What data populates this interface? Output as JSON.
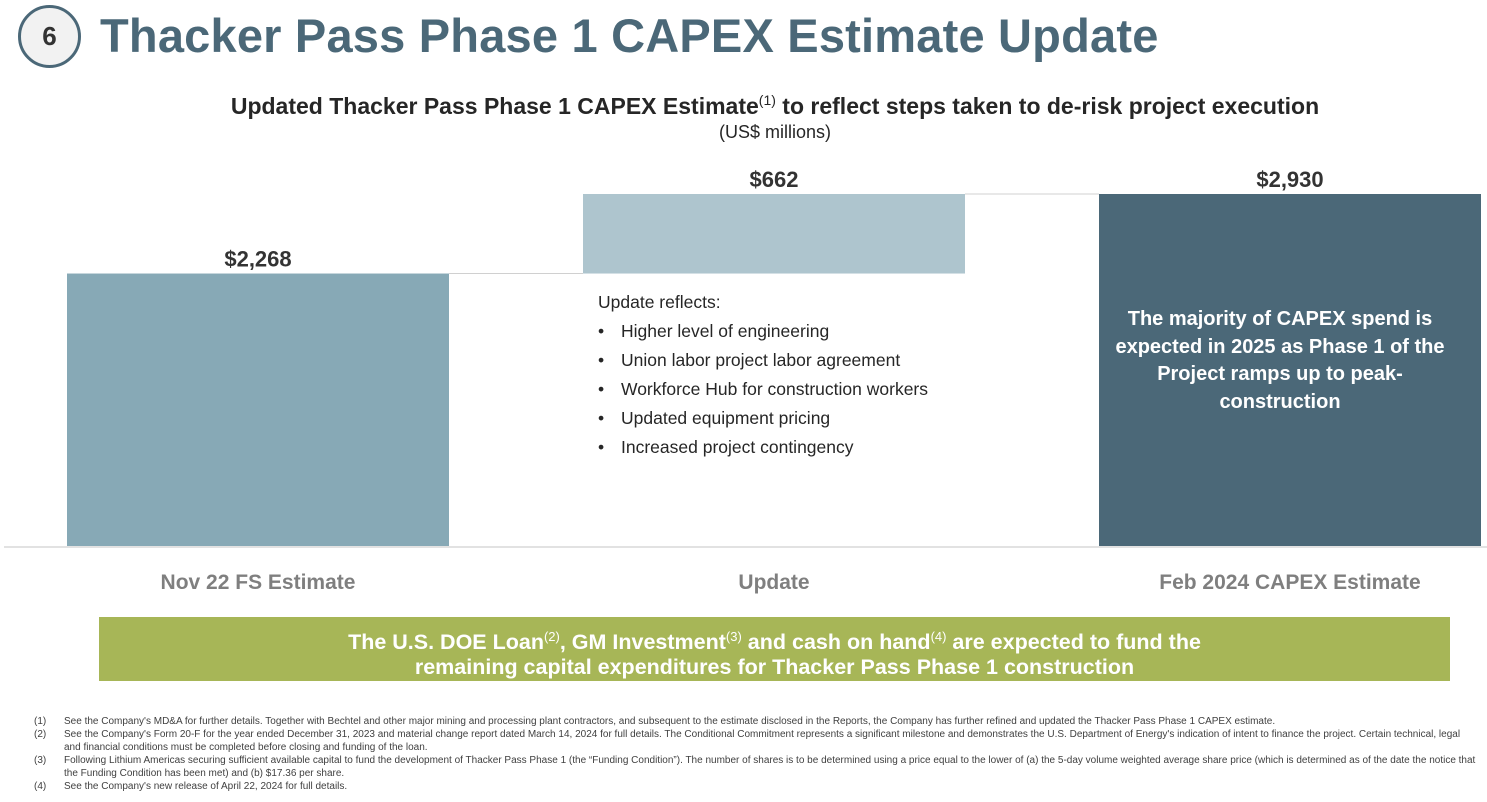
{
  "header": {
    "badge": "6",
    "title": "Thacker Pass Phase 1 CAPEX Estimate Update"
  },
  "chart_data": {
    "type": "bar",
    "subtype": "waterfall",
    "title": "Updated Thacker Pass Phase 1 CAPEX Estimate",
    "title_footnote": "(1)",
    "title_suffix": " to reflect steps taken to de-risk project execution",
    "units": "(US$ millions)",
    "categories": [
      "Nov 22 FS Estimate",
      "Update",
      "Feb 2024 CAPEX Estimate"
    ],
    "values": [
      2268,
      662,
      2930
    ],
    "bases": [
      0,
      2268,
      0
    ],
    "value_labels": [
      "$2,268",
      "$662",
      "$2,930"
    ],
    "colors": [
      "#87a9b6",
      "#aec5ce",
      "#4b6878"
    ],
    "ylim": [
      0,
      2930
    ],
    "grid": false,
    "legend": "none"
  },
  "update_note": {
    "lead": "Update reflects:",
    "bullet": "•",
    "items": [
      "Higher level of engineering",
      "Union labor project labor agreement",
      "Workforce Hub for construction workers",
      "Updated equipment pricing",
      "Increased project contingency"
    ]
  },
  "callout": {
    "text": "The majority of CAPEX spend is expected in 2025 as Phase 1 of the Project ramps up to peak-construction"
  },
  "funding_banner": {
    "part1": "The U.S. DOE Loan",
    "ref1": "(2)",
    "part2": ", GM Investment",
    "ref2": "(3)",
    "part3": " and cash on hand",
    "ref3": "(4)",
    "part4": " are expected to fund the",
    "line2": "remaining capital expenditures for Thacker Pass Phase 1 construction"
  },
  "footnotes": [
    {
      "num": "(1)",
      "text": "See the Company's MD&A for further details. Together with Bechtel and other major mining and processing plant contractors, and subsequent to the estimate disclosed in the Reports, the Company has further refined and updated the Thacker Pass Phase 1 CAPEX estimate."
    },
    {
      "num": "(2)",
      "text": "See the Company's Form 20-F for the year ended December 31, 2023 and material change report dated March 14, 2024 for full details. The Conditional Commitment represents a significant milestone and demonstrates the U.S. Department of Energy's indication of intent to finance the project. Certain technical, legal and financial conditions must be completed before closing and funding of the loan."
    },
    {
      "num": "(3)",
      "text": "Following Lithium Americas securing sufficient available capital to fund the development of Thacker Pass Phase 1 (the “Funding Condition”). The number of shares is to be determined using a price equal to the lower of (a) the 5-day volume weighted average share price (which is determined as of the date the notice that the Funding Condition has been met) and (b) $17.36 per share."
    },
    {
      "num": "(4)",
      "text": "See the Company's new release of April 22, 2024 for full details."
    }
  ]
}
